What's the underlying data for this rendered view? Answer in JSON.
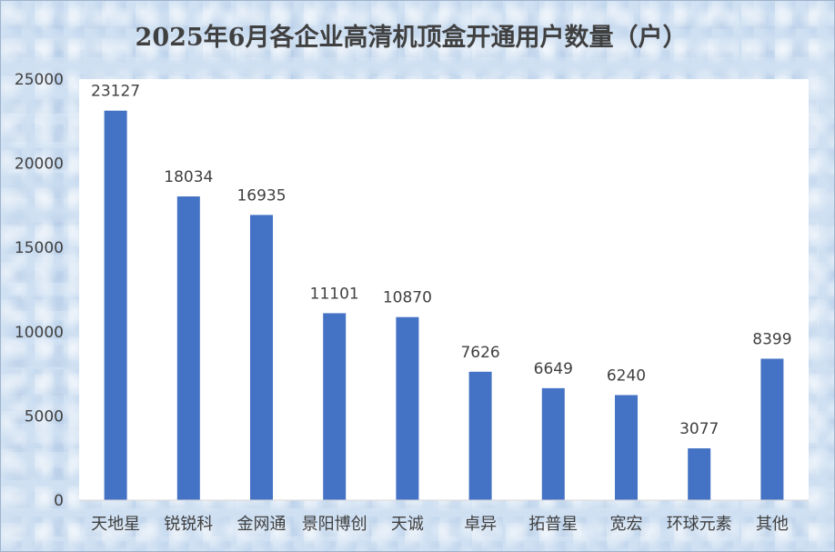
{
  "chart_data": {
    "type": "bar",
    "title": "2025年6月各企业高清机顶盒开通用户数量（户）",
    "xlabel": "",
    "ylabel": "",
    "categories": [
      "天地星",
      "锐锐科",
      "金网通",
      "景阳博创",
      "天诚",
      "卓异",
      "拓普星",
      "宽宏",
      "环球元素",
      "其他"
    ],
    "values": [
      23127,
      18034,
      16935,
      11101,
      10870,
      7626,
      6649,
      6240,
      3077,
      8399
    ],
    "ylim": [
      0,
      25000
    ],
    "yticks": [
      "0",
      "5000",
      "10000",
      "15000",
      "20000",
      "25000"
    ],
    "grid": false,
    "legend": "none",
    "colors": {
      "bar": "#4472c4",
      "plot_background": "#ffffff",
      "text": "#404040"
    }
  }
}
